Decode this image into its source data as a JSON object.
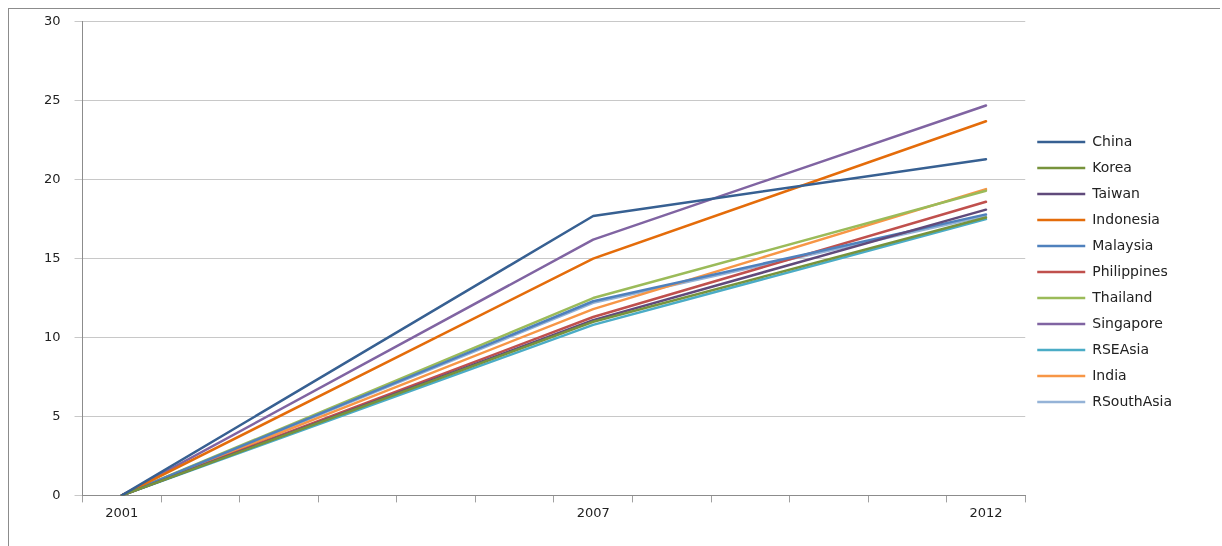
{
  "chart_data": {
    "type": "line",
    "categories": [
      "2001",
      null,
      null,
      null,
      null,
      null,
      "2007",
      null,
      null,
      null,
      null,
      "2012"
    ],
    "ylim": [
      0,
      30
    ],
    "yticks": [
      0,
      5,
      10,
      15,
      20,
      25,
      30
    ],
    "grid": "y",
    "legend": "right",
    "marker": "none",
    "line_style": "solid",
    "series": [
      {
        "name": "China",
        "color": "#376092",
        "values": [
          0,
          null,
          null,
          null,
          null,
          null,
          17.7,
          null,
          null,
          null,
          null,
          21.3
        ]
      },
      {
        "name": "Korea",
        "color": "#77933c",
        "values": [
          0,
          null,
          null,
          null,
          null,
          null,
          11.0,
          null,
          null,
          null,
          null,
          17.6
        ]
      },
      {
        "name": "Taiwan",
        "color": "#604a7b",
        "values": [
          0,
          null,
          null,
          null,
          null,
          null,
          11.1,
          null,
          null,
          null,
          null,
          18.1
        ]
      },
      {
        "name": "Indonesia",
        "color": "#e46c0a",
        "values": [
          0,
          null,
          null,
          null,
          null,
          null,
          15.0,
          null,
          null,
          null,
          null,
          23.7
        ]
      },
      {
        "name": "Malaysia",
        "color": "#4f81bd",
        "values": [
          0,
          null,
          null,
          null,
          null,
          null,
          12.3,
          null,
          null,
          null,
          null,
          17.8
        ]
      },
      {
        "name": "Philippines",
        "color": "#c0504d",
        "values": [
          0,
          null,
          null,
          null,
          null,
          null,
          11.3,
          null,
          null,
          null,
          null,
          18.6
        ]
      },
      {
        "name": "Thailand",
        "color": "#9bbb59",
        "values": [
          0,
          null,
          null,
          null,
          null,
          null,
          12.5,
          null,
          null,
          null,
          null,
          19.3
        ]
      },
      {
        "name": "Singapore",
        "color": "#8064a2",
        "values": [
          0,
          null,
          null,
          null,
          null,
          null,
          16.2,
          null,
          null,
          null,
          null,
          24.7
        ]
      },
      {
        "name": "RSEAsia",
        "color": "#4bacc6",
        "values": [
          0,
          null,
          null,
          null,
          null,
          null,
          10.8,
          null,
          null,
          null,
          null,
          17.5
        ]
      },
      {
        "name": "India",
        "color": "#f79646",
        "values": [
          0,
          null,
          null,
          null,
          null,
          null,
          11.8,
          null,
          null,
          null,
          null,
          19.4
        ]
      },
      {
        "name": "RSouthAsia",
        "color": "#95b3d7",
        "values": [
          0,
          null,
          null,
          null,
          null,
          null,
          12.2,
          null,
          null,
          null,
          null,
          17.7
        ]
      }
    ]
  }
}
